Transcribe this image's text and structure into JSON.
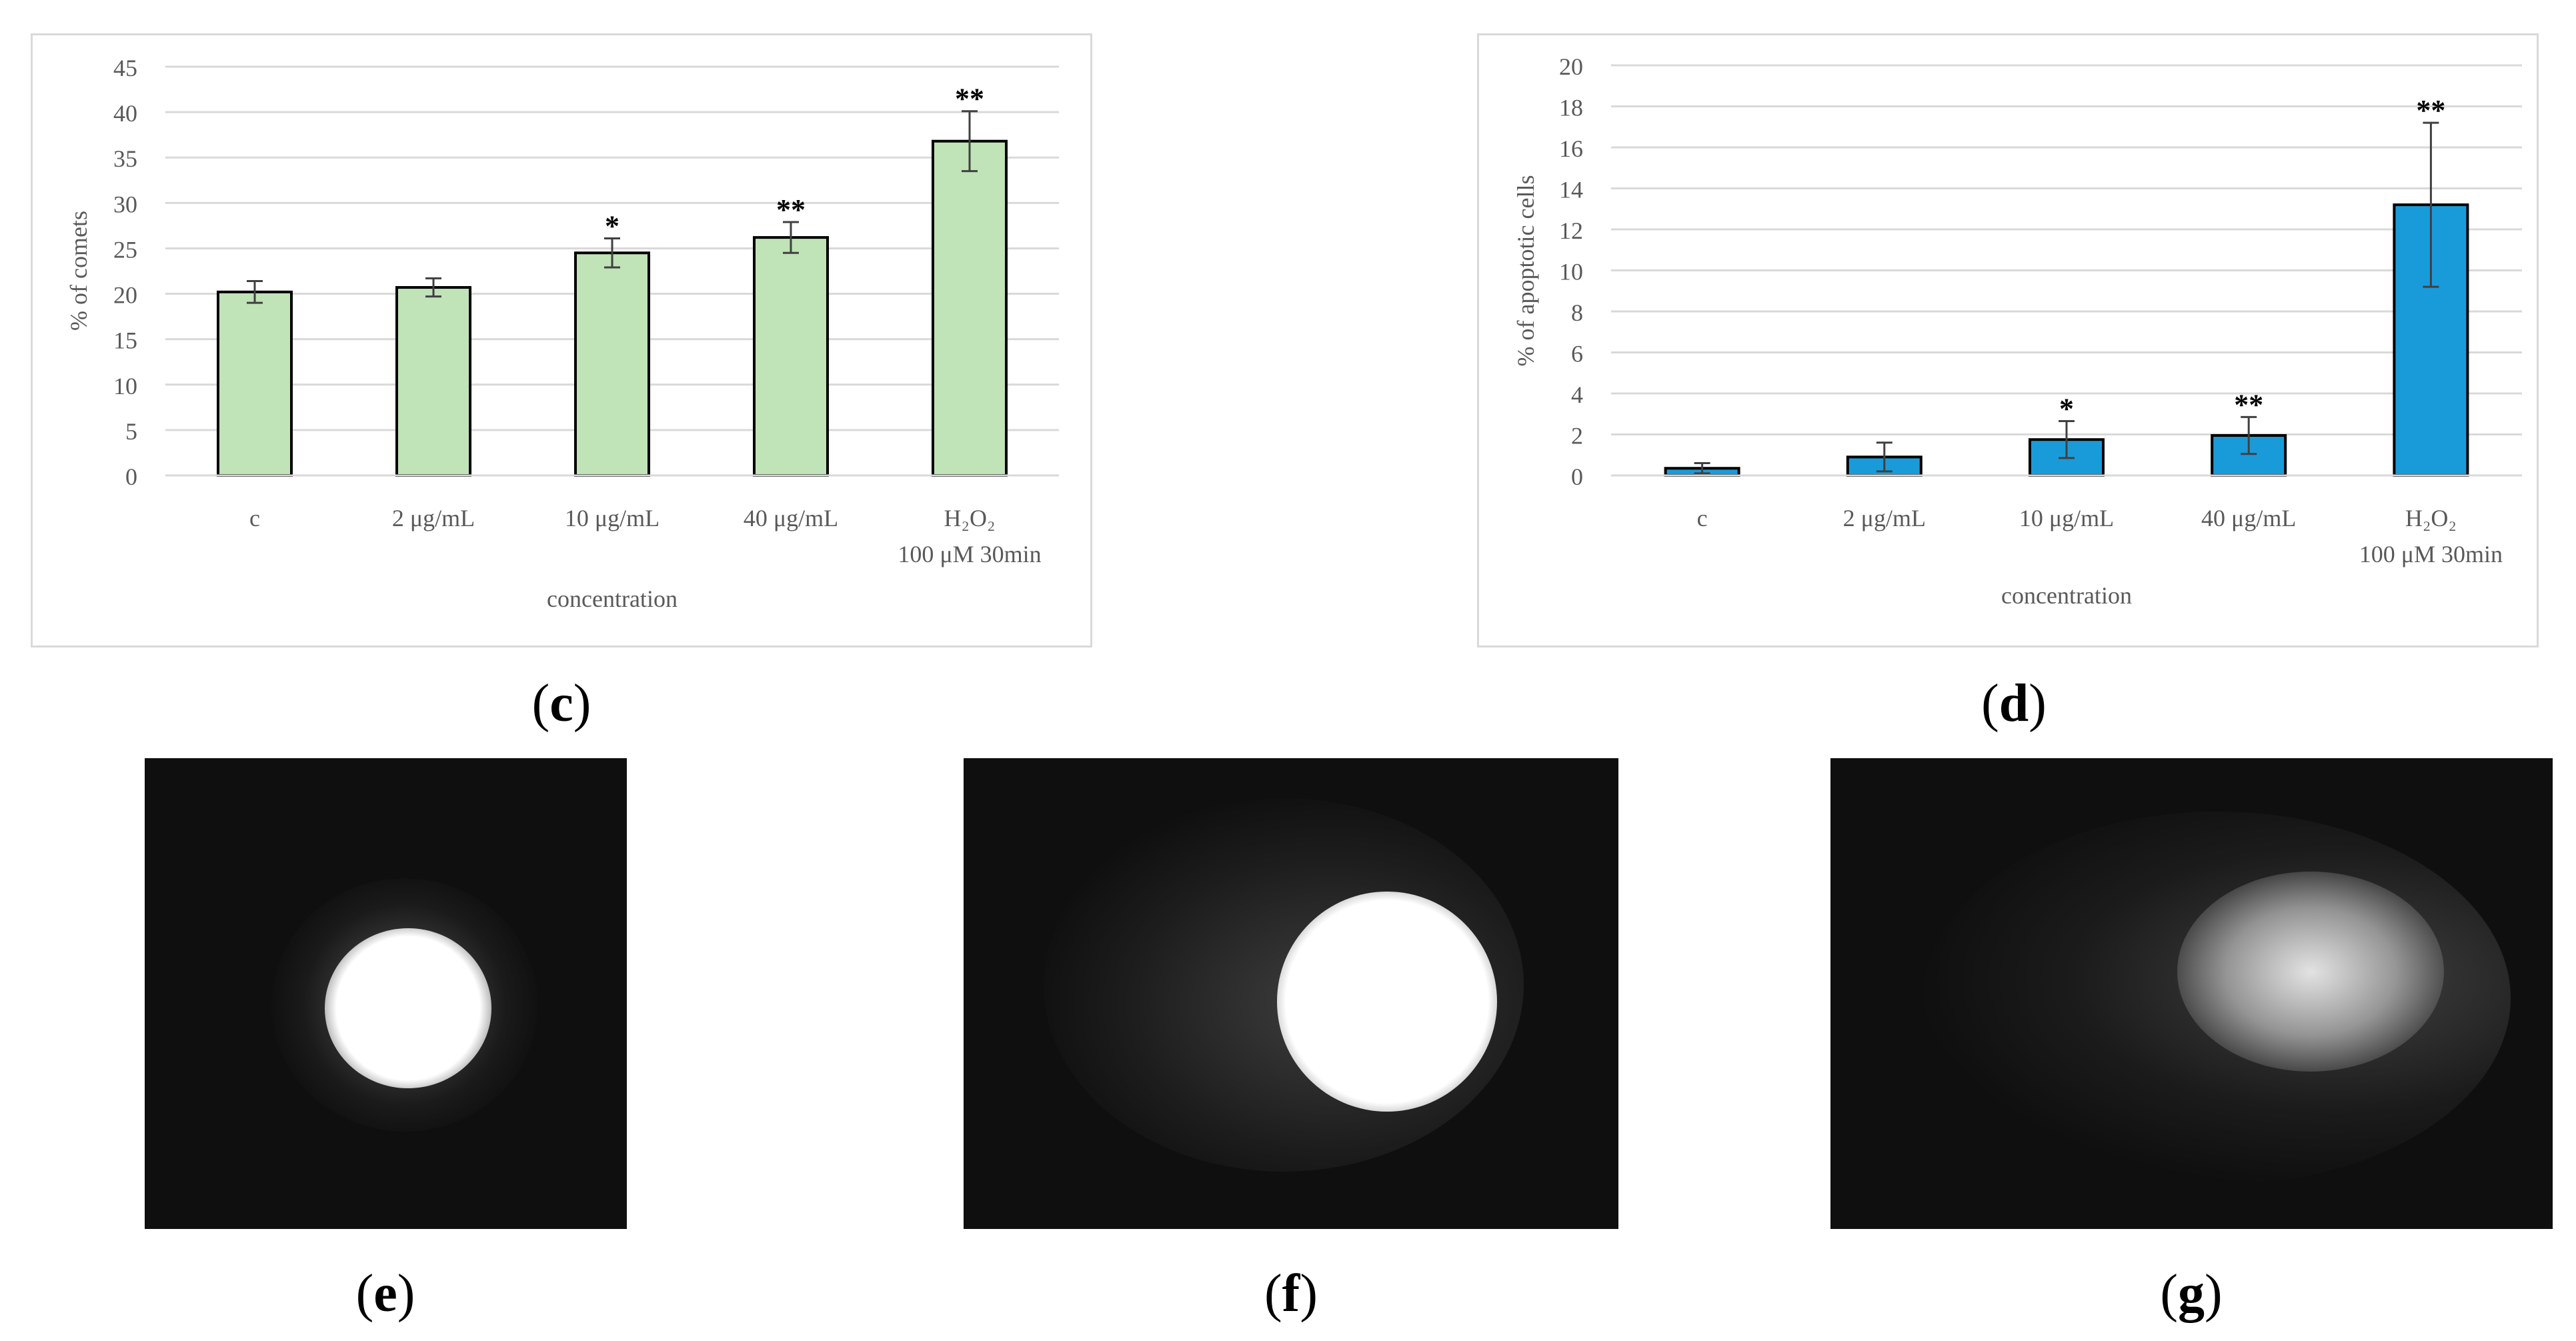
{
  "chart_data": [
    {
      "type": "bar",
      "panel": "(c)",
      "categories": [
        "c",
        "2 μg/mL",
        "10 μg/mL",
        "40 μg/mL",
        "H2O2 100 μM 30min"
      ],
      "category_lines": [
        [
          "c"
        ],
        [
          "2 μg/mL"
        ],
        [
          "10 μg/mL"
        ],
        [
          "40 μg/mL"
        ],
        [
          "H₂O₂",
          "100 μM 30min"
        ]
      ],
      "values": [
        20.2,
        20.7,
        24.5,
        26.2,
        36.8
      ],
      "errors": [
        1.2,
        1.0,
        1.6,
        1.7,
        3.3
      ],
      "significance": [
        "",
        "",
        "*",
        "**",
        "**"
      ],
      "xlabel": "concentration",
      "ylabel": "% of comets",
      "ylim": [
        0,
        45
      ],
      "yticks": [
        0,
        5,
        10,
        15,
        20,
        25,
        30,
        35,
        40,
        45
      ],
      "grid": true,
      "bar_color": "#c0e3b8",
      "bar_edge": "#000000"
    },
    {
      "type": "bar",
      "panel": "(d)",
      "categories": [
        "c",
        "2 μg/mL",
        "10 μg/mL",
        "40 μg/mL",
        "H2O2 100 μM 30min"
      ],
      "category_lines": [
        [
          "c"
        ],
        [
          "2 μg/mL"
        ],
        [
          "10 μg/mL"
        ],
        [
          "40 μg/mL"
        ],
        [
          "H₂O₂",
          "100 μM 30min"
        ]
      ],
      "values": [
        0.35,
        0.9,
        1.75,
        1.95,
        13.2
      ],
      "errors": [
        0.25,
        0.7,
        0.9,
        0.9,
        4.0
      ],
      "significance": [
        "",
        "",
        "*",
        "**",
        "**"
      ],
      "xlabel": "concentration",
      "ylabel": "% of apoptotic cells",
      "ylim": [
        0,
        20
      ],
      "yticks": [
        0,
        2,
        4,
        6,
        8,
        10,
        12,
        14,
        16,
        18,
        20
      ],
      "grid": true,
      "bar_color": "#1a9bd9",
      "bar_edge": "#000000"
    }
  ],
  "panels": {
    "c": "c",
    "d": "d",
    "e": "e",
    "f": "f",
    "g": "g"
  }
}
